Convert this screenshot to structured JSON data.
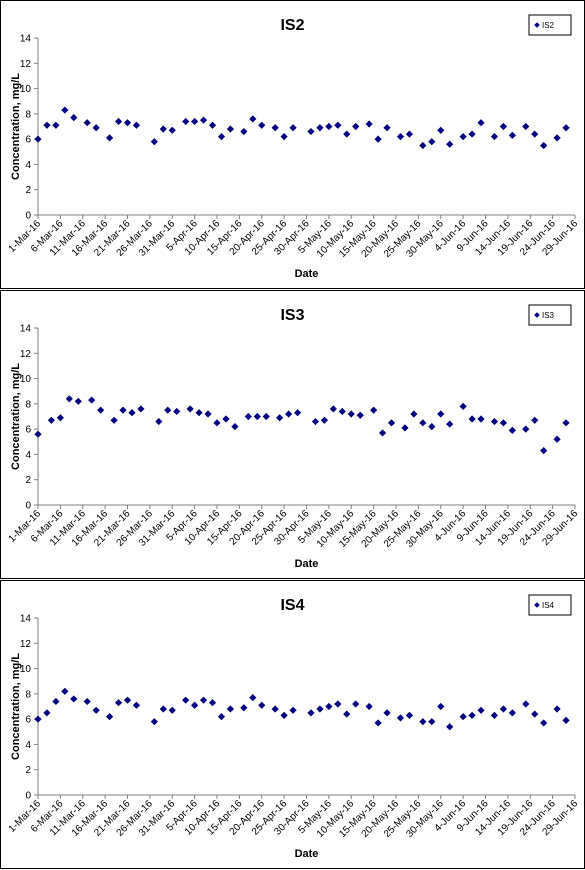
{
  "charts": [
    {
      "type": "scatter",
      "title": "IS2",
      "ylabel": "Concentration, mg/L",
      "xlabel": "Date",
      "legend": "IS2",
      "ylim": [
        0,
        14
      ],
      "yticks": [
        0,
        2,
        4,
        6,
        8,
        10,
        12,
        14
      ],
      "xticks": [
        "1-Mar-16",
        "6-Mar-16",
        "11-Mar-16",
        "16-Mar-16",
        "21-Mar-16",
        "26-Mar-16",
        "31-Mar-16",
        "5-Apr-16",
        "10-Apr-16",
        "15-Apr-16",
        "20-Apr-16",
        "25-Apr-16",
        "30-Apr-16",
        "5-May-16",
        "10-May-16",
        "15-May-16",
        "20-May-16",
        "25-May-16",
        "30-May-16",
        "4-Jun-16",
        "9-Jun-16",
        "14-Jun-16",
        "19-Jun-16",
        "24-Jun-16",
        "29-Jun-16"
      ],
      "series": [
        {
          "name": "IS2",
          "points": [
            [
              "1-Mar-16",
              6.0
            ],
            [
              "3-Mar-16",
              7.1
            ],
            [
              "5-Mar-16",
              7.1
            ],
            [
              "7-Mar-16",
              8.3
            ],
            [
              "9-Mar-16",
              7.7
            ],
            [
              "12-Mar-16",
              7.3
            ],
            [
              "14-Mar-16",
              6.9
            ],
            [
              "17-Mar-16",
              6.1
            ],
            [
              "19-Mar-16",
              7.4
            ],
            [
              "21-Mar-16",
              7.3
            ],
            [
              "23-Mar-16",
              7.1
            ],
            [
              "27-Mar-16",
              5.8
            ],
            [
              "29-Mar-16",
              6.8
            ],
            [
              "31-Mar-16",
              6.7
            ],
            [
              "3-Apr-16",
              7.4
            ],
            [
              "5-Apr-16",
              7.4
            ],
            [
              "7-Apr-16",
              7.5
            ],
            [
              "9-Apr-16",
              7.1
            ],
            [
              "11-Apr-16",
              6.2
            ],
            [
              "13-Apr-16",
              6.8
            ],
            [
              "16-Apr-16",
              6.6
            ],
            [
              "18-Apr-16",
              7.6
            ],
            [
              "20-Apr-16",
              7.1
            ],
            [
              "23-Apr-16",
              6.9
            ],
            [
              "25-Apr-16",
              6.2
            ],
            [
              "27-Apr-16",
              6.9
            ],
            [
              "1-May-16",
              6.6
            ],
            [
              "3-May-16",
              6.9
            ],
            [
              "5-May-16",
              7.0
            ],
            [
              "7-May-16",
              7.1
            ],
            [
              "9-May-16",
              6.4
            ],
            [
              "11-May-16",
              7.0
            ],
            [
              "14-May-16",
              7.2
            ],
            [
              "16-May-16",
              6.0
            ],
            [
              "18-May-16",
              6.9
            ],
            [
              "21-May-16",
              6.2
            ],
            [
              "23-May-16",
              6.4
            ],
            [
              "26-May-16",
              5.5
            ],
            [
              "28-May-16",
              5.8
            ],
            [
              "30-May-16",
              6.7
            ],
            [
              "1-Jun-16",
              5.6
            ],
            [
              "4-Jun-16",
              6.2
            ],
            [
              "6-Jun-16",
              6.4
            ],
            [
              "8-Jun-16",
              7.3
            ],
            [
              "11-Jun-16",
              6.2
            ],
            [
              "13-Jun-16",
              7.0
            ],
            [
              "15-Jun-16",
              6.3
            ],
            [
              "18-Jun-16",
              7.0
            ],
            [
              "20-Jun-16",
              6.4
            ],
            [
              "22-Jun-16",
              5.5
            ],
            [
              "25-Jun-16",
              6.1
            ],
            [
              "27-Jun-16",
              6.9
            ]
          ]
        }
      ]
    },
    {
      "type": "scatter",
      "title": "IS3",
      "ylabel": "Concentration, mg/L",
      "xlabel": "Date",
      "legend": "IS3",
      "ylim": [
        0,
        14
      ],
      "yticks": [
        0,
        2,
        4,
        6,
        8,
        10,
        12,
        14
      ],
      "xticks": [
        "1-Mar-16",
        "6-Mar-16",
        "11-Mar-16",
        "16-Mar-16",
        "21-Mar-16",
        "26-Mar-16",
        "31-Mar-16",
        "5-Apr-16",
        "10-Apr-16",
        "15-Apr-16",
        "20-Apr-16",
        "25-Apr-16",
        "30-Apr-16",
        "5-May-16",
        "10-May-16",
        "15-May-16",
        "20-May-16",
        "25-May-16",
        "30-May-16",
        "4-Jun-16",
        "9-Jun-16",
        "14-Jun-16",
        "19-Jun-16",
        "24-Jun-16",
        "29-Jun-16"
      ],
      "series": [
        {
          "name": "IS3",
          "points": [
            [
              "1-Mar-16",
              5.6
            ],
            [
              "4-Mar-16",
              6.7
            ],
            [
              "6-Mar-16",
              6.9
            ],
            [
              "8-Mar-16",
              8.4
            ],
            [
              "10-Mar-16",
              8.2
            ],
            [
              "13-Mar-16",
              8.3
            ],
            [
              "15-Mar-16",
              7.5
            ],
            [
              "18-Mar-16",
              6.7
            ],
            [
              "20-Mar-16",
              7.5
            ],
            [
              "22-Mar-16",
              7.3
            ],
            [
              "24-Mar-16",
              7.6
            ],
            [
              "28-Mar-16",
              6.6
            ],
            [
              "30-Mar-16",
              7.5
            ],
            [
              "1-Apr-16",
              7.4
            ],
            [
              "4-Apr-16",
              7.6
            ],
            [
              "6-Apr-16",
              7.3
            ],
            [
              "8-Apr-16",
              7.2
            ],
            [
              "10-Apr-16",
              6.5
            ],
            [
              "12-Apr-16",
              6.8
            ],
            [
              "14-Apr-16",
              6.2
            ],
            [
              "17-Apr-16",
              7.0
            ],
            [
              "19-Apr-16",
              7.0
            ],
            [
              "21-Apr-16",
              7.0
            ],
            [
              "24-Apr-16",
              6.9
            ],
            [
              "26-Apr-16",
              7.2
            ],
            [
              "28-Apr-16",
              7.3
            ],
            [
              "2-May-16",
              6.6
            ],
            [
              "4-May-16",
              6.7
            ],
            [
              "6-May-16",
              7.6
            ],
            [
              "8-May-16",
              7.4
            ],
            [
              "10-May-16",
              7.2
            ],
            [
              "12-May-16",
              7.1
            ],
            [
              "15-May-16",
              7.5
            ],
            [
              "17-May-16",
              5.7
            ],
            [
              "19-May-16",
              6.5
            ],
            [
              "22-May-16",
              6.1
            ],
            [
              "24-May-16",
              7.2
            ],
            [
              "26-May-16",
              6.5
            ],
            [
              "28-May-16",
              6.2
            ],
            [
              "30-May-16",
              7.2
            ],
            [
              "1-Jun-16",
              6.4
            ],
            [
              "4-Jun-16",
              7.8
            ],
            [
              "6-Jun-16",
              6.8
            ],
            [
              "8-Jun-16",
              6.8
            ],
            [
              "11-Jun-16",
              6.6
            ],
            [
              "13-Jun-16",
              6.5
            ],
            [
              "15-Jun-16",
              5.9
            ],
            [
              "18-Jun-16",
              6.0
            ],
            [
              "20-Jun-16",
              6.7
            ],
            [
              "22-Jun-16",
              4.3
            ],
            [
              "25-Jun-16",
              5.2
            ],
            [
              "27-Jun-16",
              6.5
            ]
          ]
        }
      ]
    },
    {
      "type": "scatter",
      "title": "IS4",
      "ylabel": "Concentration, mg/L",
      "xlabel": "Date",
      "legend": "IS4",
      "ylim": [
        0,
        14
      ],
      "yticks": [
        0,
        2,
        4,
        6,
        8,
        10,
        12,
        14
      ],
      "xticks": [
        "1-Mar-16",
        "6-Mar-16",
        "11-Mar-16",
        "16-Mar-16",
        "21-Mar-16",
        "26-Mar-16",
        "31-Mar-16",
        "5-Apr-16",
        "10-Apr-16",
        "15-Apr-16",
        "20-Apr-16",
        "25-Apr-16",
        "30-Apr-16",
        "5-May-16",
        "10-May-16",
        "15-May-16",
        "20-May-16",
        "25-May-16",
        "30-May-16",
        "4-Jun-16",
        "9-Jun-16",
        "14-Jun-16",
        "19-Jun-16",
        "24-Jun-16",
        "29-Jun-16"
      ],
      "series": [
        {
          "name": "IS4",
          "points": [
            [
              "1-Mar-16",
              6.0
            ],
            [
              "3-Mar-16",
              6.5
            ],
            [
              "5-Mar-16",
              7.4
            ],
            [
              "7-Mar-16",
              8.2
            ],
            [
              "9-Mar-16",
              7.6
            ],
            [
              "12-Mar-16",
              7.4
            ],
            [
              "14-Mar-16",
              6.7
            ],
            [
              "17-Mar-16",
              6.2
            ],
            [
              "19-Mar-16",
              7.3
            ],
            [
              "21-Mar-16",
              7.5
            ],
            [
              "23-Mar-16",
              7.1
            ],
            [
              "27-Mar-16",
              5.8
            ],
            [
              "29-Mar-16",
              6.8
            ],
            [
              "31-Mar-16",
              6.7
            ],
            [
              "3-Apr-16",
              7.5
            ],
            [
              "5-Apr-16",
              7.1
            ],
            [
              "7-Apr-16",
              7.5
            ],
            [
              "9-Apr-16",
              7.3
            ],
            [
              "11-Apr-16",
              6.2
            ],
            [
              "13-Apr-16",
              6.8
            ],
            [
              "16-Apr-16",
              6.9
            ],
            [
              "18-Apr-16",
              7.7
            ],
            [
              "20-Apr-16",
              7.1
            ],
            [
              "23-Apr-16",
              6.8
            ],
            [
              "25-Apr-16",
              6.3
            ],
            [
              "27-Apr-16",
              6.7
            ],
            [
              "1-May-16",
              6.5
            ],
            [
              "3-May-16",
              6.8
            ],
            [
              "5-May-16",
              7.0
            ],
            [
              "7-May-16",
              7.2
            ],
            [
              "9-May-16",
              6.4
            ],
            [
              "11-May-16",
              7.2
            ],
            [
              "14-May-16",
              7.0
            ],
            [
              "16-May-16",
              5.7
            ],
            [
              "18-May-16",
              6.5
            ],
            [
              "21-May-16",
              6.1
            ],
            [
              "23-May-16",
              6.3
            ],
            [
              "26-May-16",
              5.8
            ],
            [
              "28-May-16",
              5.8
            ],
            [
              "30-May-16",
              7.0
            ],
            [
              "1-Jun-16",
              5.4
            ],
            [
              "4-Jun-16",
              6.2
            ],
            [
              "6-Jun-16",
              6.3
            ],
            [
              "8-Jun-16",
              6.7
            ],
            [
              "11-Jun-16",
              6.3
            ],
            [
              "13-Jun-16",
              6.8
            ],
            [
              "15-Jun-16",
              6.5
            ],
            [
              "18-Jun-16",
              7.2
            ],
            [
              "20-Jun-16",
              6.4
            ],
            [
              "22-Jun-16",
              5.7
            ],
            [
              "25-Jun-16",
              6.8
            ],
            [
              "27-Jun-16",
              5.9
            ]
          ]
        }
      ]
    }
  ],
  "colors": {
    "marker": "#00007f",
    "axis": "#808080",
    "text": "#000000"
  }
}
